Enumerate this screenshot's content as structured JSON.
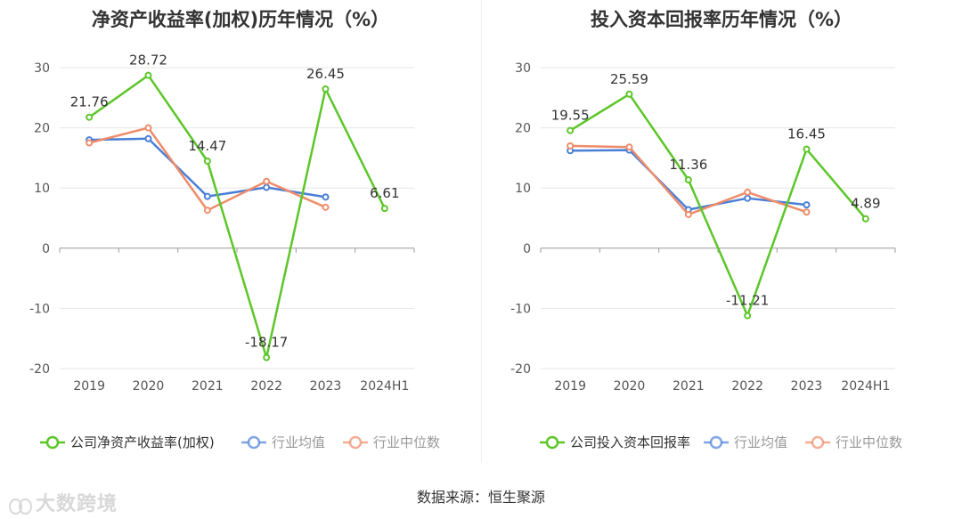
{
  "footer": {
    "source": "数据来源：恒生聚源"
  },
  "watermark": {
    "text": "大数跨境"
  },
  "chart_data": [
    {
      "type": "line",
      "title": "净资产收益率(加权)历年情况（%）",
      "categories": [
        "2019",
        "2020",
        "2021",
        "2022",
        "2023",
        "2024H1"
      ],
      "ylim": [
        -20,
        30
      ],
      "yticks": [
        30,
        20,
        10,
        0,
        -10,
        -20
      ],
      "grid": true,
      "legend_position": "bottom",
      "series": [
        {
          "name": "公司净资产收益率(加权)",
          "color": "#5cc629",
          "values": [
            21.76,
            28.72,
            14.47,
            -18.17,
            26.45,
            6.61
          ],
          "labels": [
            "21.76",
            "28.72",
            "14.47",
            "-18.17",
            "26.45",
            "6.61"
          ]
        },
        {
          "name": "行业均值",
          "color": "#4a7fd6",
          "values": [
            18.0,
            18.2,
            8.6,
            10.1,
            8.5,
            null
          ]
        },
        {
          "name": "行业中位数",
          "color": "#ef8c6a",
          "values": [
            17.5,
            20.0,
            6.3,
            11.1,
            6.8,
            null
          ]
        }
      ]
    },
    {
      "type": "line",
      "title": "投入资本回报率历年情况（%）",
      "categories": [
        "2019",
        "2020",
        "2021",
        "2022",
        "2023",
        "2024H1"
      ],
      "ylim": [
        -20,
        30
      ],
      "yticks": [
        30,
        20,
        10,
        0,
        -10,
        -20
      ],
      "grid": true,
      "legend_position": "bottom",
      "series": [
        {
          "name": "公司投入资本回报率",
          "color": "#5cc629",
          "values": [
            19.55,
            25.59,
            11.36,
            -11.21,
            16.45,
            4.89
          ],
          "labels": [
            "19.55",
            "25.59",
            "11.36",
            "-11.21",
            "16.45",
            "4.89"
          ]
        },
        {
          "name": "行业均值",
          "color": "#4a7fd6",
          "values": [
            16.2,
            16.3,
            6.4,
            8.3,
            7.2,
            null
          ]
        },
        {
          "name": "行业中位数",
          "color": "#ef8c6a",
          "values": [
            17.0,
            16.8,
            5.6,
            9.3,
            6.0,
            null
          ]
        }
      ]
    }
  ]
}
